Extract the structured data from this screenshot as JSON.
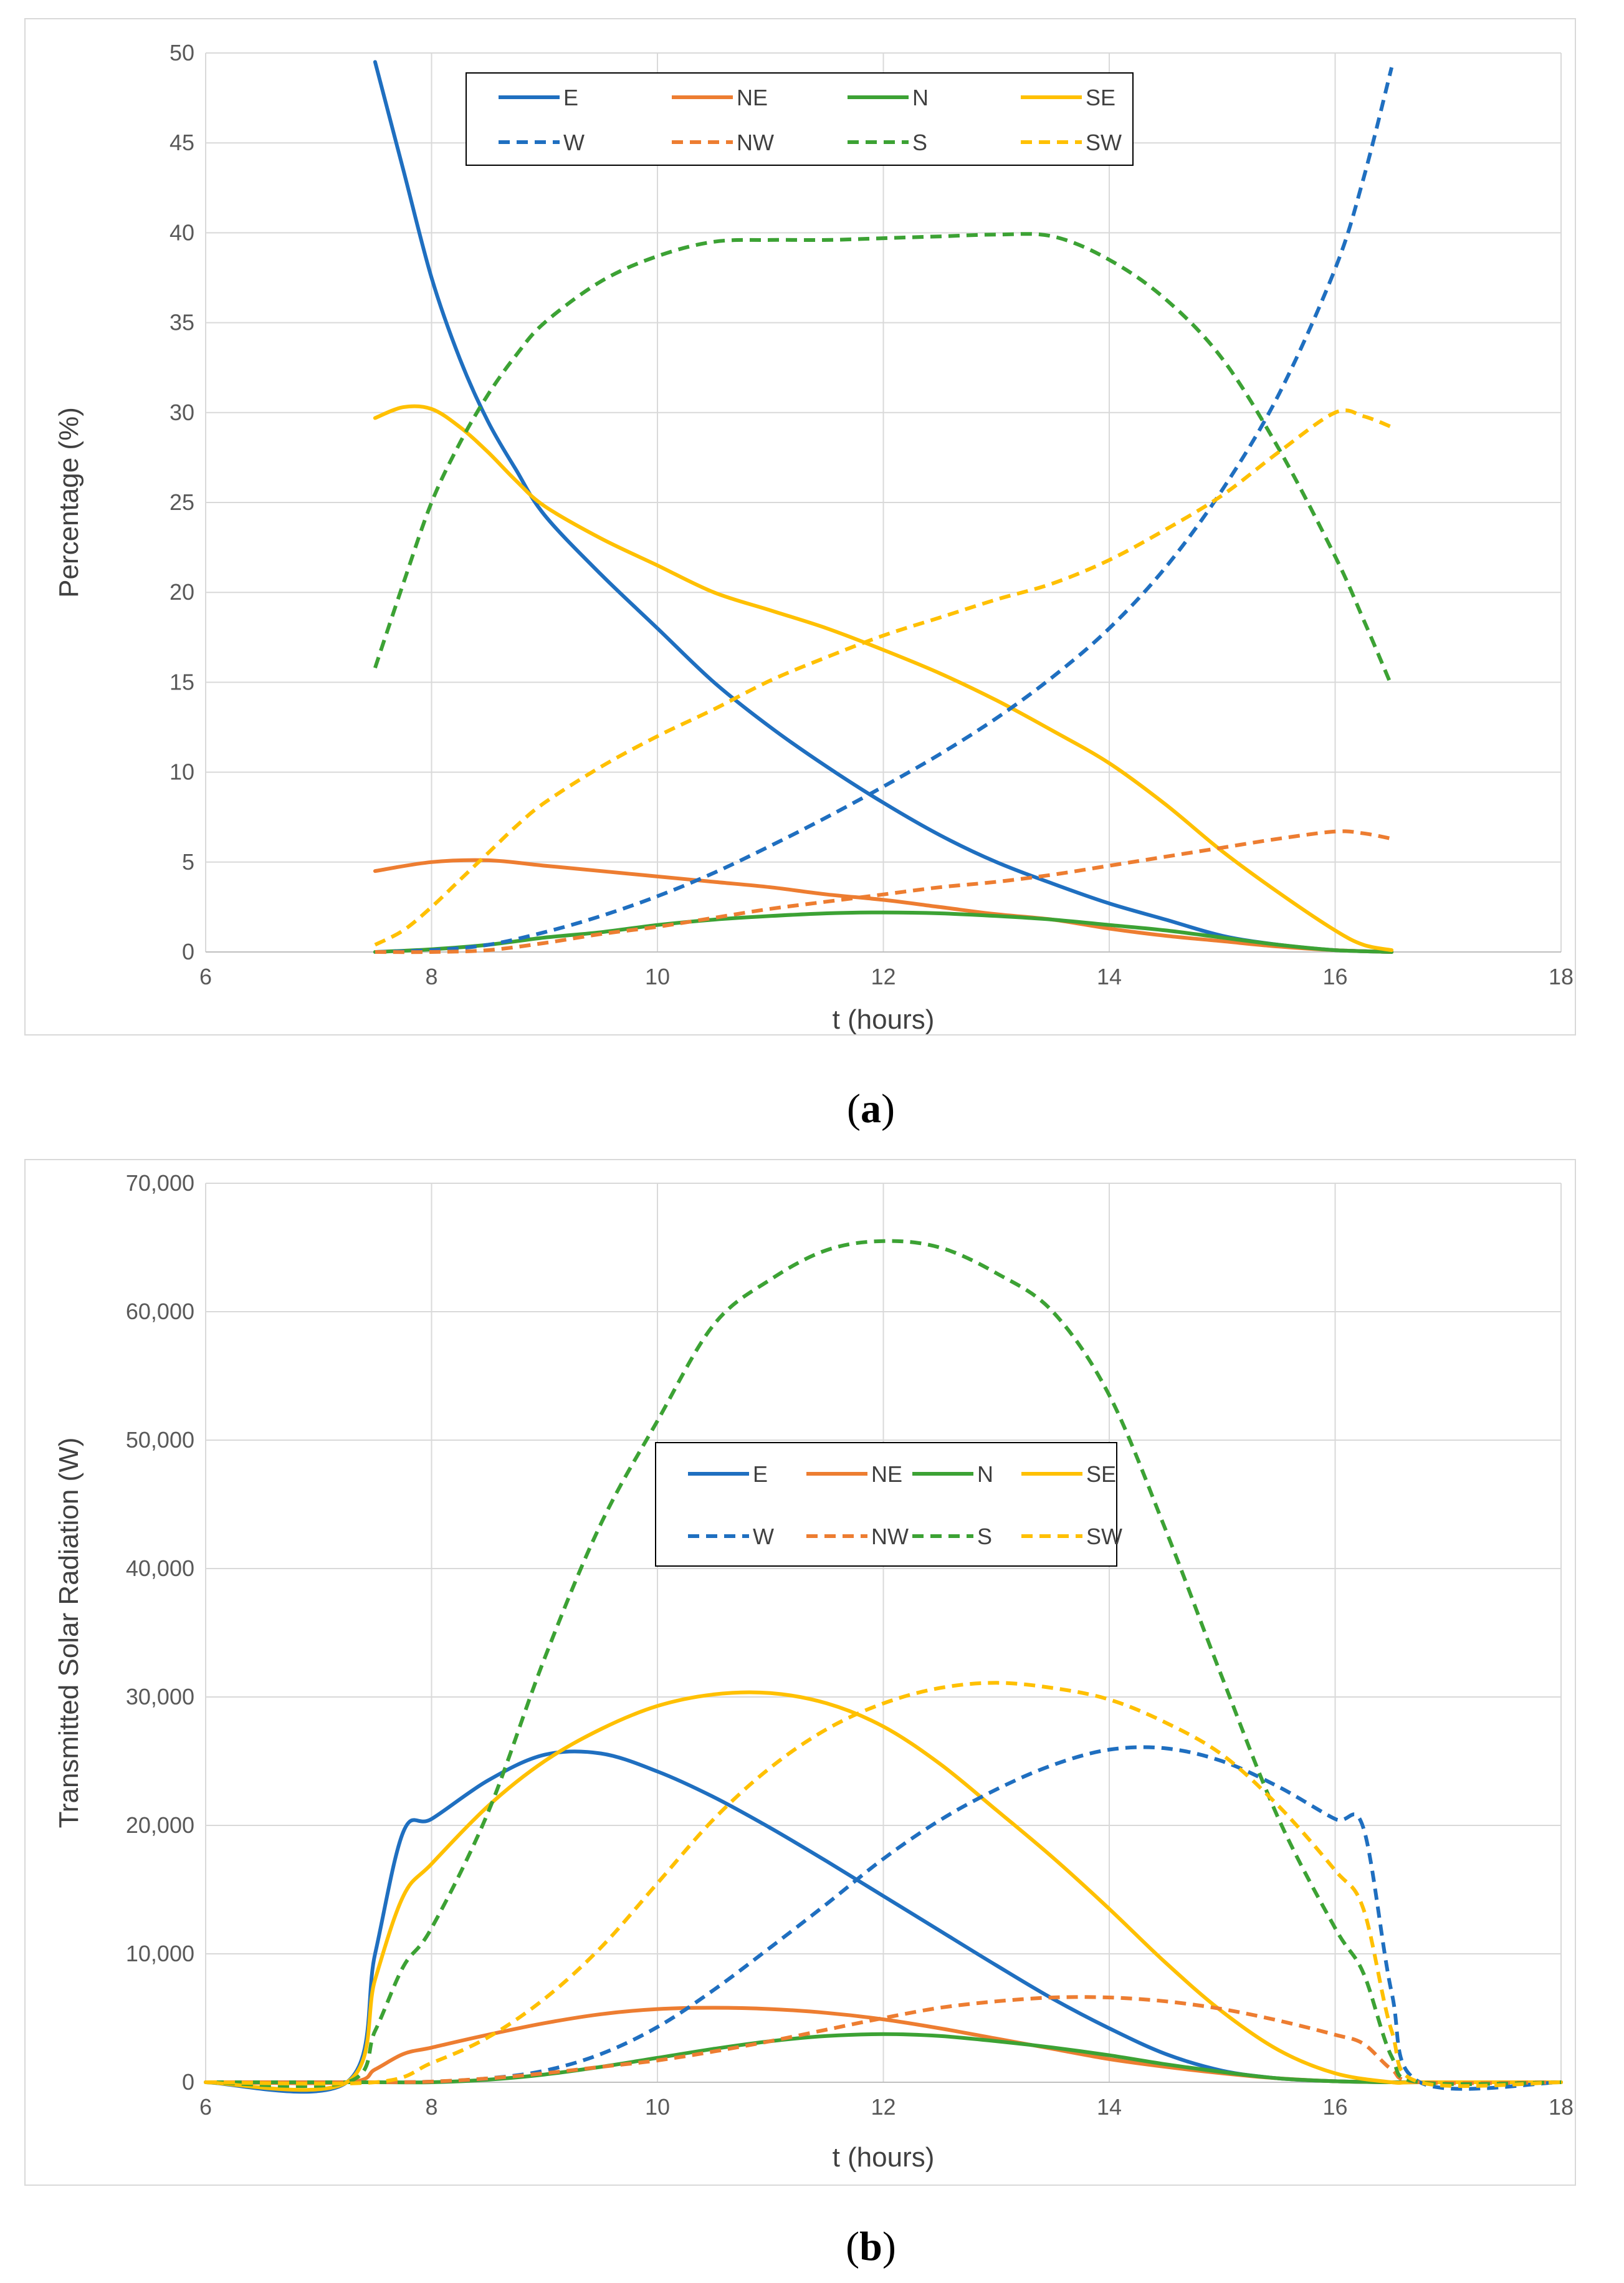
{
  "chart_data": [
    {
      "type": "line",
      "panel_label": "a",
      "title": "",
      "xlabel": "t (hours)",
      "ylabel": "Percentage (%)",
      "xlim": [
        6,
        18
      ],
      "ylim": [
        0,
        50
      ],
      "xticks": [
        6,
        8,
        10,
        12,
        14,
        16,
        18
      ],
      "yticks": [
        0,
        5,
        10,
        15,
        20,
        25,
        30,
        35,
        40,
        45,
        50
      ],
      "xtick_labels": [
        "6",
        "8",
        "10",
        "12",
        "14",
        "16",
        "18"
      ],
      "ytick_labels": [
        "0",
        "5",
        "10",
        "15",
        "20",
        "25",
        "30",
        "35",
        "40",
        "45",
        "50"
      ],
      "grid": true,
      "legend_position": "top-center",
      "series": [
        {
          "name": "E",
          "color": "#1f6fc0",
          "dash": "solid",
          "x": [
            7.5,
            7.75,
            8,
            8.25,
            8.5,
            8.75,
            9,
            9.5,
            10,
            10.5,
            11,
            11.5,
            12,
            12.5,
            13,
            13.5,
            14,
            14.5,
            15,
            15.5,
            16,
            16.5
          ],
          "y": [
            49.5,
            43.5,
            37.5,
            33,
            29.5,
            26.8,
            24.3,
            21,
            18,
            15,
            12.5,
            10.3,
            8.3,
            6.5,
            5,
            3.8,
            2.7,
            1.8,
            0.9,
            0.4,
            0.1,
            0
          ]
        },
        {
          "name": "NE",
          "color": "#ed7d31",
          "dash": "solid",
          "x": [
            7.5,
            8,
            8.5,
            9,
            9.5,
            10,
            10.5,
            11,
            11.5,
            12,
            12.5,
            13,
            13.5,
            14,
            14.5,
            15,
            15.5,
            16,
            16.5
          ],
          "y": [
            4.5,
            5,
            5.1,
            4.8,
            4.5,
            4.2,
            3.9,
            3.6,
            3.2,
            2.9,
            2.5,
            2.1,
            1.8,
            1.3,
            0.9,
            0.6,
            0.3,
            0.1,
            0
          ]
        },
        {
          "name": "N",
          "color": "#3ca234",
          "dash": "solid",
          "x": [
            7.5,
            8,
            8.5,
            9,
            9.5,
            10,
            10.5,
            11,
            11.5,
            12,
            12.5,
            13,
            13.5,
            14,
            14.5,
            15,
            15.5,
            16,
            16.5
          ],
          "y": [
            0,
            0.15,
            0.4,
            0.8,
            1.1,
            1.5,
            1.8,
            2.0,
            2.15,
            2.2,
            2.15,
            2.0,
            1.8,
            1.5,
            1.2,
            0.8,
            0.4,
            0.1,
            0
          ]
        },
        {
          "name": "SE",
          "color": "#ffc000",
          "dash": "solid",
          "x": [
            7.5,
            7.75,
            8,
            8.25,
            8.5,
            8.75,
            9,
            9.5,
            10,
            10.5,
            11,
            11.5,
            12,
            12.5,
            13,
            13.5,
            14,
            14.5,
            15,
            15.5,
            16,
            16.25,
            16.5
          ],
          "y": [
            29.7,
            30.3,
            30.2,
            29.2,
            27.8,
            26.2,
            24.8,
            23,
            21.5,
            20,
            19,
            18,
            16.8,
            15.5,
            14,
            12.3,
            10.5,
            8.2,
            5.6,
            3.3,
            1.2,
            0.4,
            0.1
          ]
        },
        {
          "name": "W",
          "color": "#1f6fc0",
          "dash": "dashed",
          "x": [
            7.5,
            8,
            8.5,
            9,
            9.5,
            10,
            10.5,
            11,
            11.5,
            12,
            12.5,
            13,
            13.5,
            14,
            14.5,
            15,
            15.5,
            16,
            16.25,
            16.5
          ],
          "y": [
            0,
            0.1,
            0.4,
            1.1,
            2,
            3.1,
            4.4,
            5.9,
            7.5,
            9.2,
            11,
            13,
            15.3,
            18,
            21.4,
            25.7,
            31,
            38,
            43,
            49.2
          ]
        },
        {
          "name": "NW",
          "color": "#ed7d31",
          "dash": "dashed",
          "x": [
            7.5,
            8,
            8.5,
            9,
            9.5,
            10,
            10.5,
            11,
            11.5,
            12,
            12.5,
            13,
            13.5,
            14,
            14.5,
            15,
            15.5,
            16,
            16.25,
            16.5
          ],
          "y": [
            0,
            0,
            0.1,
            0.5,
            1,
            1.4,
            1.9,
            2.4,
            2.8,
            3.2,
            3.6,
            3.9,
            4.3,
            4.8,
            5.3,
            5.8,
            6.3,
            6.7,
            6.6,
            6.3
          ]
        },
        {
          "name": "S",
          "color": "#3ca234",
          "dash": "dashed",
          "x": [
            7.5,
            7.75,
            8,
            8.25,
            8.5,
            8.75,
            9,
            9.5,
            10,
            10.5,
            11,
            11.5,
            12,
            12.5,
            13,
            13.5,
            14,
            14.5,
            15,
            15.5,
            16,
            16.25,
            16.5
          ],
          "y": [
            15.8,
            20.5,
            25,
            28.3,
            31,
            33.2,
            35,
            37.3,
            38.7,
            39.5,
            39.6,
            39.6,
            39.7,
            39.8,
            39.9,
            39.8,
            38.5,
            36.3,
            33,
            28,
            22,
            18.5,
            14.8
          ]
        },
        {
          "name": "SW",
          "color": "#ffc000",
          "dash": "dashed",
          "x": [
            7.5,
            7.75,
            8,
            8.25,
            8.5,
            8.75,
            9,
            9.5,
            10,
            10.5,
            11,
            11.5,
            12,
            12.5,
            13,
            13.5,
            14,
            14.5,
            15,
            15.5,
            16,
            16.25,
            16.5
          ],
          "y": [
            0.4,
            1.2,
            2.5,
            4,
            5.5,
            7,
            8.3,
            10.3,
            12,
            13.5,
            15.1,
            16.4,
            17.6,
            18.6,
            19.6,
            20.5,
            21.8,
            23.5,
            25.4,
            27.8,
            30,
            29.8,
            29.2
          ]
        }
      ]
    },
    {
      "type": "line",
      "panel_label": "b",
      "title": "",
      "xlabel": "t (hours)",
      "ylabel": "Transmitted Solar Radiation (W)",
      "xlim": [
        6,
        18
      ],
      "ylim": [
        0,
        70000
      ],
      "xticks": [
        6,
        8,
        10,
        12,
        14,
        16,
        18
      ],
      "yticks": [
        0,
        10000,
        20000,
        30000,
        40000,
        50000,
        60000,
        70000
      ],
      "xtick_labels": [
        "6",
        "8",
        "10",
        "12",
        "14",
        "16",
        "18"
      ],
      "ytick_labels": [
        "0",
        "10,000",
        "20,000",
        "30,000",
        "40,000",
        "50,000",
        "60,000",
        "70,000"
      ],
      "grid": true,
      "legend_position": "center",
      "series": [
        {
          "name": "E",
          "color": "#1f6fc0",
          "dash": "solid",
          "x": [
            6,
            7.25,
            7.5,
            7.75,
            8,
            8.5,
            9,
            9.5,
            10,
            10.5,
            11,
            11.5,
            12,
            12.5,
            13,
            13.5,
            14,
            14.5,
            15,
            15.5,
            16,
            16.5,
            16.75,
            18
          ],
          "y": [
            0,
            0,
            10000,
            19500,
            20500,
            23500,
            25500,
            25600,
            24200,
            22200,
            19800,
            17200,
            14500,
            11800,
            9100,
            6500,
            4200,
            2200,
            900,
            300,
            80,
            0,
            0,
            0
          ]
        },
        {
          "name": "NE",
          "color": "#ed7d31",
          "dash": "solid",
          "x": [
            6,
            7.25,
            7.5,
            7.75,
            8,
            8.5,
            9,
            9.5,
            10,
            10.5,
            11,
            11.5,
            12,
            12.5,
            13,
            13.5,
            14,
            14.5,
            15,
            15.5,
            16,
            16.5,
            16.75,
            18
          ],
          "y": [
            0,
            0,
            1000,
            2200,
            2700,
            3700,
            4600,
            5300,
            5700,
            5800,
            5700,
            5400,
            4900,
            4200,
            3400,
            2600,
            1800,
            1200,
            700,
            300,
            80,
            0,
            0,
            0
          ]
        },
        {
          "name": "N",
          "color": "#3ca234",
          "dash": "solid",
          "x": [
            6,
            7.5,
            8,
            8.5,
            9,
            9.5,
            10,
            10.5,
            11,
            11.5,
            12,
            12.5,
            13,
            13.5,
            14,
            14.5,
            15,
            15.5,
            16,
            16.5,
            16.75,
            18
          ],
          "y": [
            0,
            0,
            0,
            200,
            600,
            1200,
            1900,
            2600,
            3200,
            3600,
            3750,
            3600,
            3200,
            2700,
            2100,
            1400,
            800,
            300,
            80,
            0,
            0,
            0
          ]
        },
        {
          "name": "SE",
          "color": "#ffc000",
          "dash": "solid",
          "x": [
            6,
            7.25,
            7.5,
            7.75,
            8,
            8.5,
            9,
            9.5,
            10,
            10.5,
            11,
            11.5,
            12,
            12.5,
            13,
            13.5,
            14,
            14.5,
            15,
            15.5,
            16,
            16.5,
            16.75,
            18
          ],
          "y": [
            0,
            0,
            8000,
            14500,
            17000,
            21500,
            25000,
            27500,
            29300,
            30200,
            30300,
            29500,
            27700,
            24800,
            21200,
            17500,
            13500,
            9300,
            5500,
            2500,
            700,
            0,
            0,
            0
          ]
        },
        {
          "name": "W",
          "color": "#1f6fc0",
          "dash": "dashed",
          "x": [
            6,
            7.5,
            8,
            8.5,
            9,
            9.5,
            10,
            10.5,
            11,
            11.5,
            12,
            12.5,
            13,
            13.5,
            14,
            14.5,
            15,
            15.5,
            16,
            16.25,
            16.5,
            16.75,
            18
          ],
          "y": [
            0,
            0,
            50,
            300,
            900,
            2200,
            4300,
            7200,
            10500,
            13900,
            17400,
            20400,
            22800,
            24700,
            25900,
            26000,
            25000,
            23000,
            20500,
            19800,
            7000,
            0,
            0
          ]
        },
        {
          "name": "NW",
          "color": "#ed7d31",
          "dash": "dashed",
          "x": [
            6,
            7.5,
            8,
            8.5,
            9,
            9.5,
            10,
            10.5,
            11,
            11.5,
            12,
            12.5,
            13,
            13.5,
            14,
            14.5,
            15,
            15.5,
            16,
            16.25,
            16.5,
            16.75,
            18
          ],
          "y": [
            0,
            0,
            50,
            300,
            700,
            1200,
            1700,
            2400,
            3200,
            4100,
            5000,
            5800,
            6300,
            6600,
            6600,
            6300,
            5700,
            4800,
            3700,
            3000,
            1000,
            0,
            0
          ]
        },
        {
          "name": "S",
          "color": "#3ca234",
          "dash": "dashed",
          "x": [
            6,
            7.25,
            7.5,
            7.75,
            8,
            8.5,
            9,
            9.5,
            10,
            10.5,
            11,
            11.5,
            12,
            12.5,
            13,
            13.5,
            14,
            14.5,
            15,
            15.5,
            16,
            16.25,
            16.5,
            16.75,
            18
          ],
          "y": [
            0,
            0,
            4000,
            9000,
            12000,
            21000,
            33000,
            43500,
            51500,
            59000,
            62500,
            64800,
            65500,
            65000,
            63000,
            60000,
            53500,
            43000,
            31500,
            20500,
            12000,
            8500,
            2000,
            0,
            0
          ]
        },
        {
          "name": "SW",
          "color": "#ffc000",
          "dash": "dashed",
          "x": [
            6,
            7.5,
            8,
            8.5,
            9,
            9.5,
            10,
            10.5,
            11,
            11.5,
            12,
            12.5,
            13,
            13.5,
            14,
            14.5,
            15,
            15.5,
            16,
            16.25,
            16.5,
            16.75,
            18
          ],
          "y": [
            0,
            0,
            1500,
            3500,
            6500,
            10500,
            15500,
            20500,
            24500,
            27500,
            29500,
            30700,
            31100,
            30700,
            29800,
            28000,
            25500,
            21500,
            16500,
            13500,
            4000,
            0,
            0
          ]
        }
      ]
    }
  ]
}
